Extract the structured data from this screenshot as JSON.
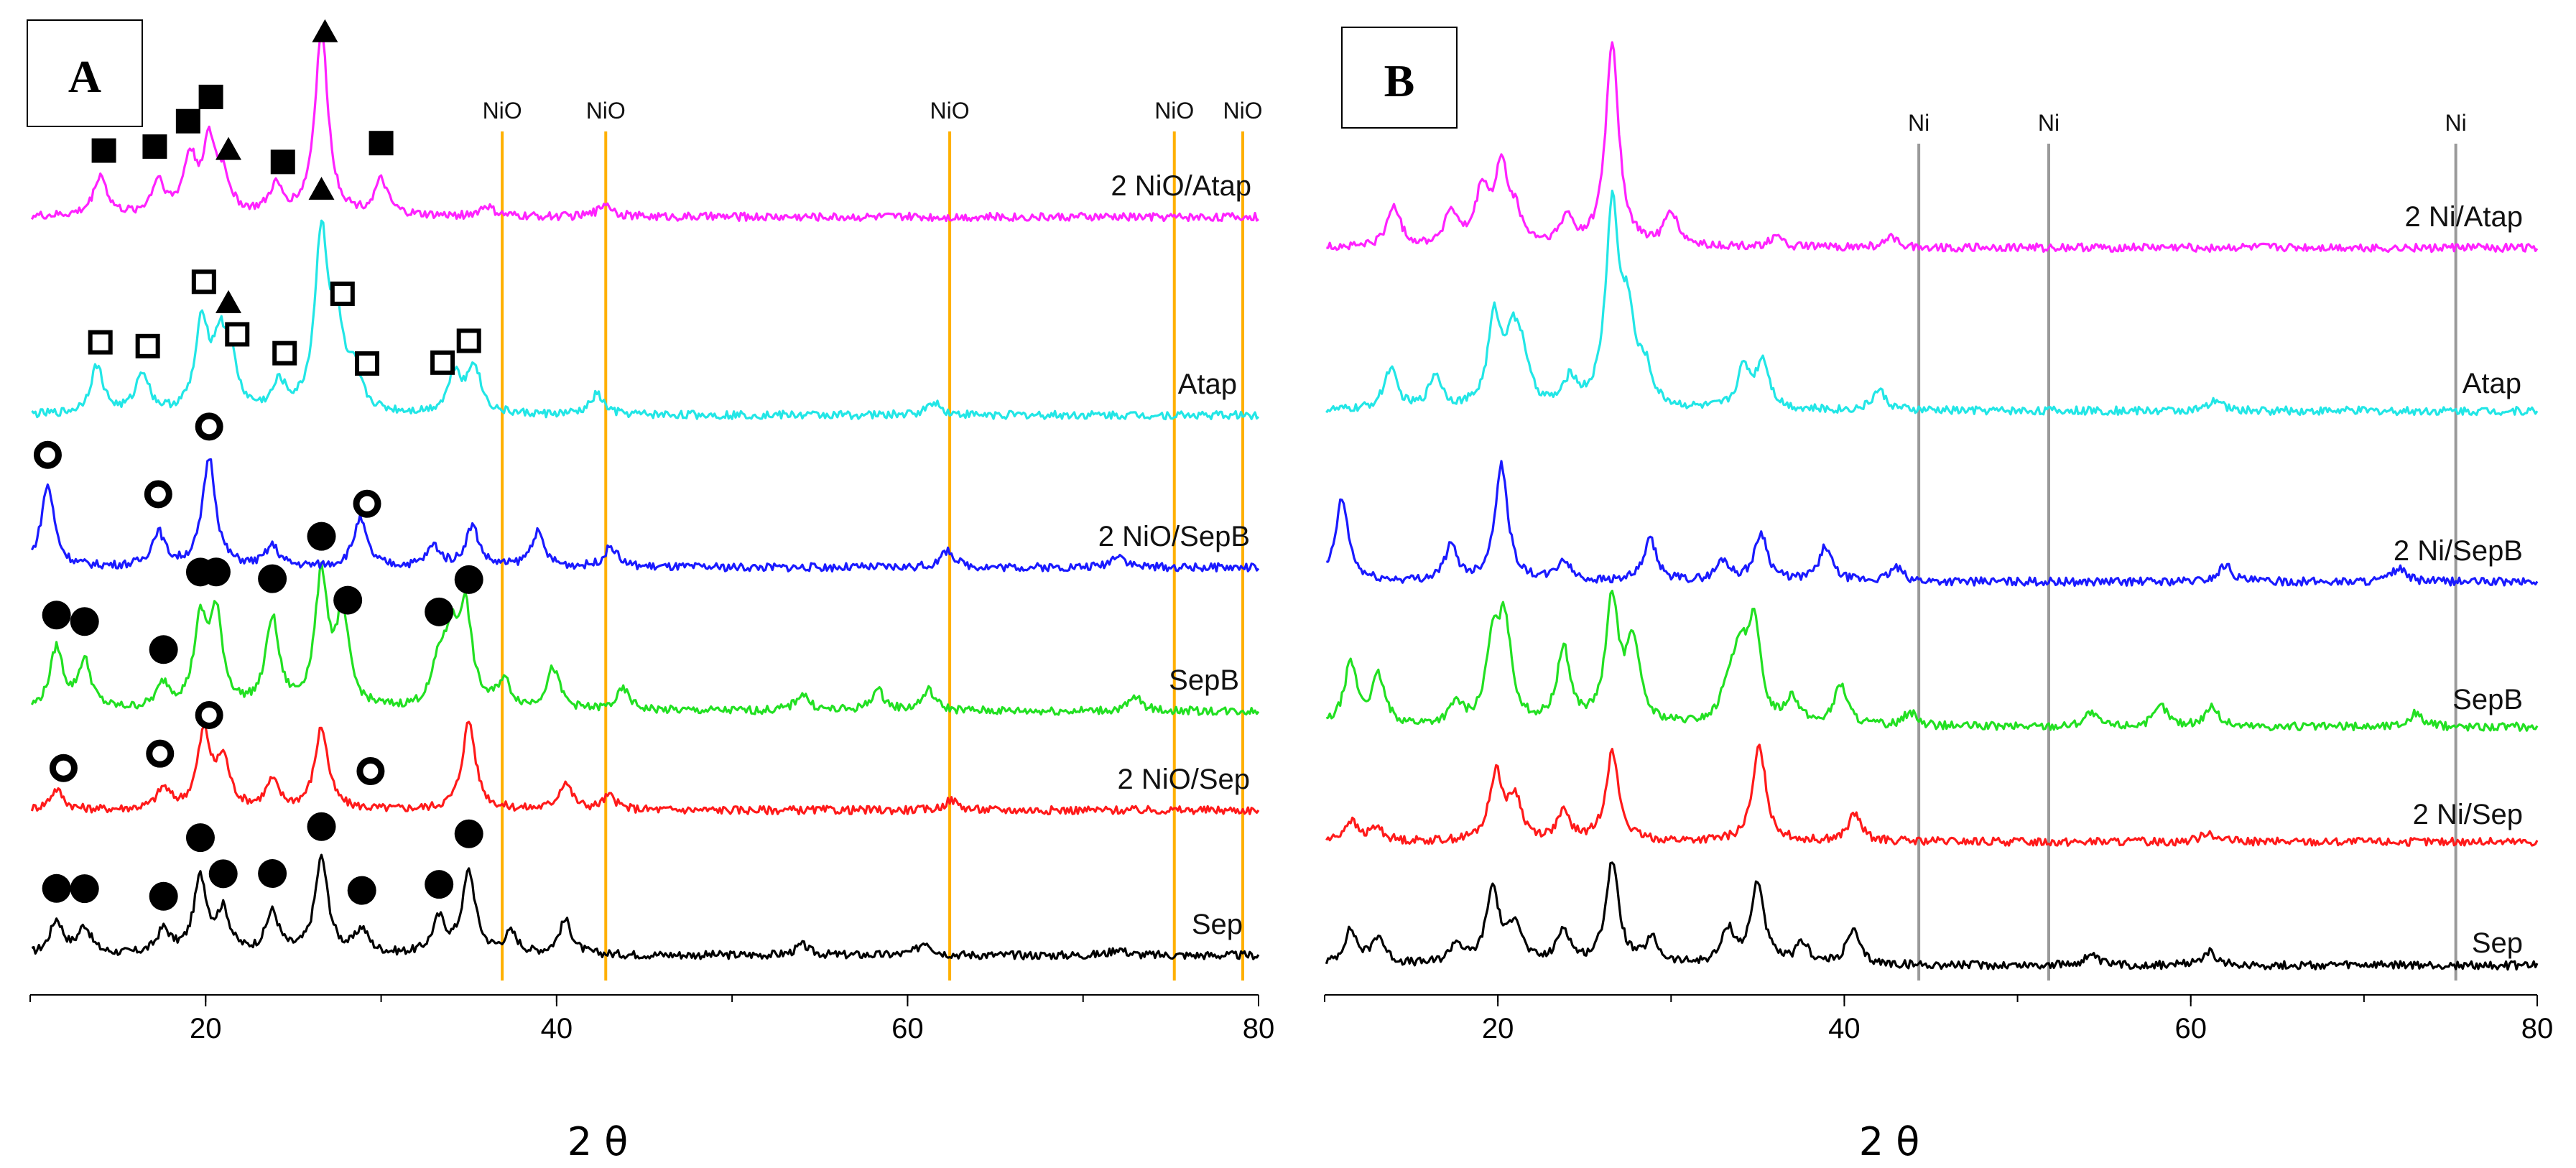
{
  "chart_data": [
    {
      "type": "line",
      "panel": "A",
      "xlabel": "2 θ",
      "ylabel": "",
      "xlim": [
        10,
        80
      ],
      "xticks": [
        20,
        40,
        60,
        80
      ],
      "reference_lines": {
        "color": "#ffb000",
        "items": [
          {
            "x": 36.9,
            "label": "NiO"
          },
          {
            "x": 42.8,
            "label": "NiO"
          },
          {
            "x": 62.4,
            "label": "NiO"
          },
          {
            "x": 75.2,
            "label": "NiO"
          },
          {
            "x": 79.1,
            "label": "NiO"
          }
        ]
      },
      "series": [
        {
          "name": "Sep",
          "label": "Sep",
          "color": "#000000",
          "peaks": [
            [
              11.5,
              0.5
            ],
            [
              13.1,
              0.4
            ],
            [
              17.6,
              0.35
            ],
            [
              19.7,
              1.1
            ],
            [
              21.0,
              0.6
            ],
            [
              23.8,
              0.6
            ],
            [
              26.6,
              1.4
            ],
            [
              28.9,
              0.35
            ],
            [
              33.3,
              0.5
            ],
            [
              35.0,
              1.2
            ],
            [
              37.4,
              0.3
            ],
            [
              40.5,
              0.5
            ],
            [
              54.0,
              0.15
            ],
            [
              61.0,
              0.2
            ],
            [
              72.0,
              0.1
            ]
          ],
          "markers": {
            "type": "filled-circle",
            "x": [
              11.5,
              13.1,
              17.6,
              19.7,
              21.0,
              23.8,
              26.6,
              28.9,
              33.3,
              35.0
            ]
          }
        },
        {
          "name": "2 NiO/Sep",
          "label": "2 NiO/Sep",
          "color": "#ff1a1a",
          "peaks": [
            [
              11.5,
              0.3
            ],
            [
              17.6,
              0.3
            ],
            [
              19.9,
              1.1
            ],
            [
              21.0,
              0.7
            ],
            [
              23.8,
              0.4
            ],
            [
              26.6,
              1.2
            ],
            [
              35.0,
              1.3
            ],
            [
              40.5,
              0.4
            ],
            [
              43.0,
              0.2
            ],
            [
              62.5,
              0.15
            ]
          ],
          "markers": {
            "type": "open-circle",
            "x": [
              11.9,
              17.4,
              20.2,
              29.4
            ]
          }
        },
        {
          "name": "SepB",
          "label": "SepB",
          "color": "#22e022",
          "peaks": [
            [
              11.5,
              0.9
            ],
            [
              13.1,
              0.7
            ],
            [
              17.6,
              0.35
            ],
            [
              19.7,
              1.2
            ],
            [
              20.6,
              1.3
            ],
            [
              23.8,
              1.3
            ],
            [
              26.6,
              1.9
            ],
            [
              27.8,
              1.3
            ],
            [
              33.3,
              0.6
            ],
            [
              34.0,
              0.9
            ],
            [
              34.8,
              1.4
            ],
            [
              37.0,
              0.4
            ],
            [
              39.8,
              0.6
            ],
            [
              43.8,
              0.3
            ],
            [
              54.0,
              0.25
            ],
            [
              58.3,
              0.3
            ],
            [
              61.2,
              0.3
            ],
            [
              73.0,
              0.2
            ]
          ],
          "markers": {
            "type": "filled-circle",
            "x": [
              11.5,
              13.1,
              17.6,
              19.7,
              20.6,
              23.8,
              26.6,
              28.1,
              33.3,
              35.0
            ]
          }
        },
        {
          "name": "2 NiO/SepB",
          "label": "2 NiO/SepB",
          "color": "#1a1aff",
          "peaks": [
            [
              11.0,
              1.2
            ],
            [
              17.3,
              0.5
            ],
            [
              20.2,
              1.6
            ],
            [
              23.8,
              0.3
            ],
            [
              28.8,
              0.7
            ],
            [
              33.0,
              0.3
            ],
            [
              35.2,
              0.6
            ],
            [
              38.9,
              0.5
            ],
            [
              43.1,
              0.3
            ],
            [
              62.3,
              0.25
            ],
            [
              72.0,
              0.2
            ]
          ],
          "markers": {
            "type": "open-circle",
            "x": [
              11.0,
              17.3,
              20.2,
              29.2
            ]
          }
        },
        {
          "name": "Atap",
          "label": "Atap",
          "color": "#22e6e6",
          "peaks": [
            [
              13.8,
              0.7
            ],
            [
              16.4,
              0.6
            ],
            [
              19.8,
              1.3
            ],
            [
              20.8,
              0.9
            ],
            [
              21.4,
              0.7
            ],
            [
              24.2,
              0.4
            ],
            [
              26.6,
              2.6
            ],
            [
              27.5,
              1.1
            ],
            [
              28.5,
              0.5
            ],
            [
              34.2,
              0.6
            ],
            [
              35.3,
              0.7
            ],
            [
              42.3,
              0.3
            ],
            [
              61.5,
              0.2
            ]
          ],
          "markers": {
            "type": "open-square",
            "x": [
              14.0,
              16.7,
              19.9,
              21.8,
              24.5,
              27.8,
              29.2,
              33.5,
              35.0
            ]
          }
        },
        {
          "name": "2 NiO/Atap",
          "label": "2 NiO/Atap",
          "color": "#ff22ff",
          "peaks": [
            [
              14.0,
              0.6
            ],
            [
              17.3,
              0.5
            ],
            [
              19.1,
              0.8
            ],
            [
              20.2,
              1.0
            ],
            [
              21.0,
              0.5
            ],
            [
              24.0,
              0.4
            ],
            [
              26.6,
              2.7
            ],
            [
              30.0,
              0.5
            ],
            [
              36.0,
              0.15
            ],
            [
              42.8,
              0.2
            ]
          ],
          "markers": {
            "type": "filled-square",
            "x": [
              14.2,
              17.1,
              19.0,
              20.3,
              24.4,
              30.0
            ]
          }
        }
      ],
      "triangle_markers": [
        {
          "series": "2 NiO/Atap",
          "x": [
            26.8,
            21.3
          ]
        },
        {
          "series": "Atap",
          "x": [
            26.6,
            21.3
          ]
        }
      ]
    },
    {
      "type": "line",
      "panel": "B",
      "xlabel": "2 θ",
      "ylabel": "",
      "xlim": [
        10,
        80
      ],
      "xticks": [
        20,
        40,
        60,
        80
      ],
      "reference_lines": {
        "color": "#9a9a9a",
        "items": [
          {
            "x": 44.3,
            "label": "Ni"
          },
          {
            "x": 51.8,
            "label": "Ni"
          },
          {
            "x": 75.3,
            "label": "Ni"
          }
        ]
      },
      "series": [
        {
          "name": "Sep",
          "label": "Sep",
          "color": "#000000",
          "peaks": [
            [
              11.5,
              0.5
            ],
            [
              13.1,
              0.4
            ],
            [
              17.6,
              0.3
            ],
            [
              19.7,
              1.1
            ],
            [
              21.0,
              0.6
            ],
            [
              23.8,
              0.5
            ],
            [
              26.6,
              1.5
            ],
            [
              28.9,
              0.35
            ],
            [
              33.3,
              0.5
            ],
            [
              35.0,
              1.2
            ],
            [
              37.6,
              0.3
            ],
            [
              40.5,
              0.5
            ],
            [
              54.2,
              0.15
            ],
            [
              61.0,
              0.2
            ]
          ]
        },
        {
          "name": "2 Ni/Sep",
          "label": "2 Ni/Sep",
          "color": "#ff1a1a",
          "peaks": [
            [
              11.5,
              0.3
            ],
            [
              13.0,
              0.2
            ],
            [
              19.9,
              1.0
            ],
            [
              21.0,
              0.6
            ],
            [
              23.8,
              0.4
            ],
            [
              26.6,
              1.3
            ],
            [
              35.1,
              1.4
            ],
            [
              40.6,
              0.4
            ],
            [
              61.0,
              0.15
            ]
          ]
        },
        {
          "name": "SepB",
          "label": "SepB",
          "color": "#22e022",
          "peaks": [
            [
              11.5,
              0.9
            ],
            [
              13.1,
              0.7
            ],
            [
              17.6,
              0.3
            ],
            [
              19.7,
              1.1
            ],
            [
              20.4,
              1.4
            ],
            [
              23.8,
              1.1
            ],
            [
              26.6,
              1.8
            ],
            [
              27.8,
              1.2
            ],
            [
              33.3,
              0.5
            ],
            [
              34.0,
              0.9
            ],
            [
              34.8,
              1.4
            ],
            [
              37.0,
              0.4
            ],
            [
              39.8,
              0.6
            ],
            [
              43.8,
              0.2
            ],
            [
              54.2,
              0.2
            ],
            [
              58.3,
              0.3
            ],
            [
              61.2,
              0.3
            ],
            [
              73.0,
              0.2
            ]
          ]
        },
        {
          "name": "2 Ni/SepB",
          "label": "2 Ni/SepB",
          "color": "#1a1aff",
          "peaks": [
            [
              11.0,
              1.2
            ],
            [
              17.3,
              0.5
            ],
            [
              20.2,
              1.7
            ],
            [
              23.8,
              0.3
            ],
            [
              28.8,
              0.6
            ],
            [
              33.0,
              0.3
            ],
            [
              35.2,
              0.7
            ],
            [
              38.9,
              0.5
            ],
            [
              43.0,
              0.2
            ],
            [
              62.0,
              0.25
            ],
            [
              72.0,
              0.2
            ]
          ]
        },
        {
          "name": "Atap",
          "label": "Atap",
          "color": "#22e6e6",
          "peaks": [
            [
              13.8,
              0.6
            ],
            [
              16.4,
              0.5
            ],
            [
              19.8,
              1.3
            ],
            [
              20.8,
              0.9
            ],
            [
              21.4,
              0.7
            ],
            [
              24.2,
              0.4
            ],
            [
              26.6,
              2.9
            ],
            [
              27.5,
              1.2
            ],
            [
              28.5,
              0.5
            ],
            [
              34.2,
              0.6
            ],
            [
              35.3,
              0.7
            ],
            [
              42.0,
              0.3
            ],
            [
              61.5,
              0.15
            ]
          ]
        },
        {
          "name": "2 Ni/Atap",
          "label": "2 Ni/Atap",
          "color": "#ff22ff",
          "peaks": [
            [
              14.0,
              0.6
            ],
            [
              17.3,
              0.5
            ],
            [
              19.1,
              0.8
            ],
            [
              20.2,
              1.1
            ],
            [
              21.0,
              0.4
            ],
            [
              24.0,
              0.4
            ],
            [
              26.6,
              3.0
            ],
            [
              30.0,
              0.5
            ],
            [
              36.0,
              0.15
            ],
            [
              42.8,
              0.15
            ]
          ]
        }
      ]
    }
  ]
}
